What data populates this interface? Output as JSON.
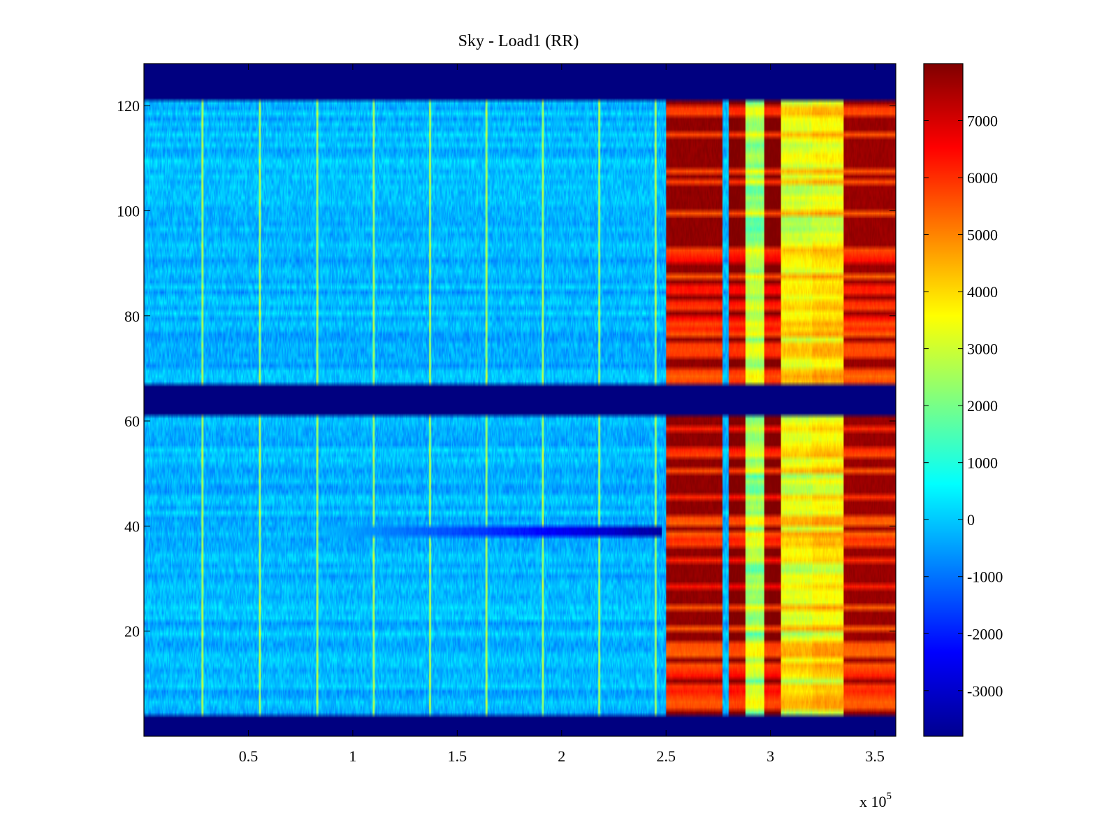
{
  "chart_data": {
    "type": "heatmap",
    "title": "Sky - Load1 (RR)",
    "xlabel": "",
    "ylabel": "",
    "x_multiplier_label": "x 10",
    "x_multiplier_exponent": "5",
    "xlim": [
      0,
      3.6
    ],
    "ylim": [
      0,
      128
    ],
    "x_ticks": [
      0.5,
      1,
      1.5,
      2,
      2.5,
      3,
      3.5
    ],
    "x_tick_labels": [
      "0.5",
      "1",
      "1.5",
      "2",
      "2.5",
      "3",
      "3.5"
    ],
    "y_ticks": [
      20,
      40,
      60,
      80,
      100,
      120
    ],
    "y_tick_labels": [
      "20",
      "40",
      "60",
      "80",
      "100",
      "120"
    ],
    "colorbar": {
      "colormap": "jet",
      "range": [
        -3800,
        8000
      ],
      "ticks": [
        -3000,
        -2000,
        -1000,
        0,
        1000,
        2000,
        3000,
        4000,
        5000,
        6000,
        7000
      ],
      "tick_labels": [
        "-3000",
        "-2000",
        "-1000",
        "0",
        "1000",
        "2000",
        "3000",
        "4000",
        "5000",
        "6000",
        "7000"
      ]
    },
    "baseline_value": -200,
    "blank_channel_bands": [
      [
        0,
        4
      ],
      [
        61,
        67
      ],
      [
        121,
        128
      ]
    ],
    "bright_time_columns": [
      0.28,
      0.555,
      0.83,
      1.1,
      1.37,
      1.64,
      1.91,
      2.18,
      2.45
    ],
    "dip_feature": {
      "channel": 39,
      "x_start": 0.85,
      "x_end": 2.48,
      "value": -3400
    },
    "hot_segments": [
      {
        "x_start": 2.5,
        "x_end": 2.77,
        "value": 7800
      },
      {
        "x_start": 2.8,
        "x_end": 2.88,
        "value": 8000
      },
      {
        "x_start": 2.88,
        "x_end": 2.97,
        "value": 2600
      },
      {
        "x_start": 2.97,
        "x_end": 3.05,
        "value": 8000
      },
      {
        "x_start": 3.05,
        "x_end": 3.2,
        "value": 3500
      },
      {
        "x_start": 3.2,
        "x_end": 3.35,
        "value": 3800
      },
      {
        "x_start": 3.35,
        "x_end": 3.6,
        "value": 7700
      }
    ]
  }
}
